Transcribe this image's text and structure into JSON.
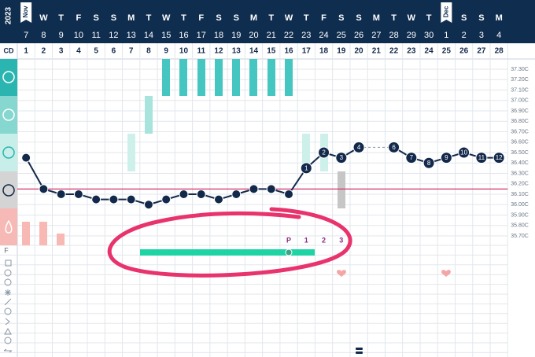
{
  "header": {
    "year": "2023",
    "cd_label": "CD",
    "fertility_label": "F"
  },
  "chart_data": {
    "type": "line",
    "month_tabs": [
      "Nov",
      null,
      null,
      null,
      null,
      null,
      null,
      null,
      null,
      null,
      null,
      null,
      null,
      null,
      null,
      null,
      null,
      null,
      null,
      null,
      null,
      null,
      null,
      null,
      "Dec",
      null,
      null,
      null
    ],
    "weekdays": [
      null,
      "W",
      "T",
      "F",
      "S",
      "S",
      "M",
      "T",
      "W",
      "T",
      "F",
      "S",
      "S",
      "M",
      "T",
      "W",
      "T",
      "F",
      "S",
      "S",
      "M",
      "T",
      "W",
      "T",
      null,
      "S",
      "S",
      "M"
    ],
    "categories": [
      "7",
      "8",
      "9",
      "10",
      "11",
      "12",
      "13",
      "14",
      "15",
      "16",
      "17",
      "18",
      "19",
      "20",
      "21",
      "22",
      "23",
      "24",
      "25",
      "26",
      "27",
      "28",
      "29",
      "30",
      "1",
      "2",
      "3",
      "4"
    ],
    "cycle_days": [
      1,
      2,
      3,
      4,
      5,
      6,
      7,
      8,
      9,
      10,
      11,
      12,
      13,
      14,
      15,
      16,
      17,
      18,
      19,
      20,
      21,
      22,
      23,
      24,
      25,
      26,
      27,
      28
    ],
    "series": [
      {
        "color": "#13294b",
        "values": [
          36.45,
          36.15,
          36.1,
          36.1,
          36.05,
          36.05,
          36.05,
          36.0,
          36.05,
          36.1,
          36.1,
          36.05,
          36.1,
          36.15,
          36.15,
          36.1,
          36.35,
          36.5,
          36.45,
          36.55,
          null,
          36.55,
          36.45,
          36.4,
          36.45,
          36.5,
          36.45,
          36.45
        ],
        "point_labels": [
          null,
          null,
          null,
          null,
          null,
          null,
          null,
          null,
          null,
          null,
          null,
          null,
          null,
          null,
          null,
          null,
          "1",
          "2",
          "3",
          "4",
          null,
          "6",
          "7",
          "8",
          "9",
          "10",
          "11",
          "12"
        ]
      }
    ],
    "coverline": 36.15,
    "coverline_color": "#d6336c",
    "fertile_labels": [
      null,
      null,
      null,
      null,
      null,
      null,
      null,
      null,
      null,
      null,
      null,
      null,
      null,
      null,
      null,
      "P",
      "1",
      "2",
      "3",
      null,
      null,
      null,
      null,
      null,
      null,
      null,
      null,
      null
    ],
    "ylim": [
      35.6,
      37.4
    ],
    "yticks": [
      {
        "value": 37.3,
        "label": "37.30C"
      },
      {
        "value": 37.2,
        "label": "37.20C"
      },
      {
        "value": 37.1,
        "label": "37.10C"
      },
      {
        "value": 37.0,
        "label": "37.00C"
      },
      {
        "value": 36.9,
        "label": "36.90C"
      },
      {
        "value": 36.8,
        "label": "36.80C"
      },
      {
        "value": 36.7,
        "label": "36.70C"
      },
      {
        "value": 36.6,
        "label": "36.60C"
      },
      {
        "value": 36.5,
        "label": "36.50C"
      },
      {
        "value": 36.4,
        "label": "36.40C"
      },
      {
        "value": 36.3,
        "label": "36.30C"
      },
      {
        "value": 36.2,
        "label": "36.20C"
      },
      {
        "value": 36.1,
        "label": "36.10C"
      },
      {
        "value": 36.0,
        "label": "36.00C"
      },
      {
        "value": 35.9,
        "label": "35.90C"
      },
      {
        "value": 35.8,
        "label": "35.80C"
      },
      {
        "value": 35.7,
        "label": "35.70C"
      }
    ],
    "grid": true
  }
}
